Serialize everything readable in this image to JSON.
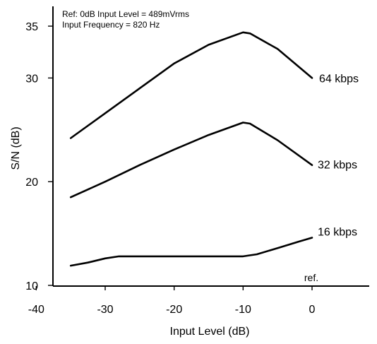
{
  "chart_data": {
    "type": "line",
    "title": "",
    "annotations": [
      "Ref: 0dB Input Level = 489mVrms",
      "Input Frequency = 820 Hz"
    ],
    "xlabel": "Input Level (dB)",
    "ylabel": "S/N (dB)",
    "xlim": [
      -50,
      5
    ],
    "ylim": [
      10,
      37
    ],
    "xticks": [
      -40,
      -30,
      -20,
      -10,
      0
    ],
    "yticks": [
      10,
      20,
      30,
      35
    ],
    "ref_label": "ref.",
    "grid": false,
    "series": [
      {
        "name": "64 kbps",
        "x": [
          -35,
          -30,
          -25,
          -20,
          -15,
          -10,
          -9,
          -5,
          0
        ],
        "y": [
          24.2,
          26.6,
          29.0,
          31.4,
          33.2,
          34.4,
          34.3,
          32.8,
          30.0
        ]
      },
      {
        "name": "32 kbps",
        "x": [
          -35,
          -30,
          -25,
          -20,
          -15,
          -10,
          -9,
          -5,
          0
        ],
        "y": [
          18.5,
          20.0,
          21.6,
          23.1,
          24.5,
          25.7,
          25.6,
          24.0,
          21.6
        ]
      },
      {
        "name": "16 kbps",
        "x": [
          -35,
          -32.5,
          -30,
          -28,
          -25,
          -20,
          -15,
          -10,
          -8,
          -5,
          -2,
          0
        ],
        "y": [
          11.9,
          12.2,
          12.6,
          12.8,
          12.8,
          12.8,
          12.8,
          12.8,
          13.0,
          13.6,
          14.2,
          14.6
        ]
      }
    ]
  }
}
